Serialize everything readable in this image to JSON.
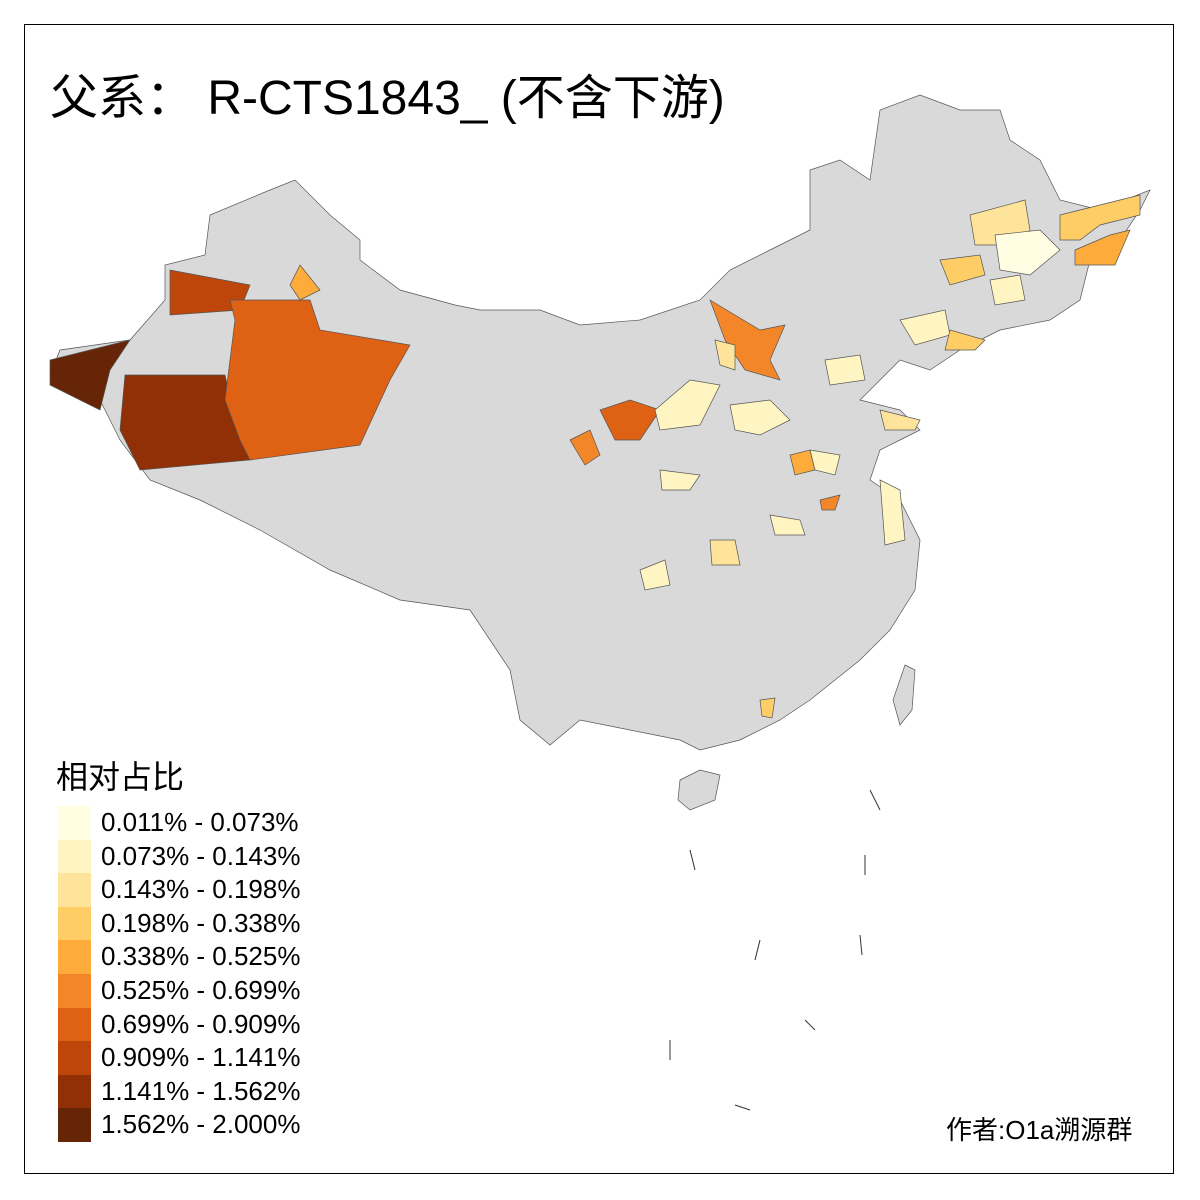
{
  "title": "父系： R-CTS1843_ (不含下游)",
  "legend": {
    "title": "相对占比",
    "items": [
      {
        "label": "0.011% - 0.073%",
        "color": "#FFFEE3"
      },
      {
        "label": "0.073% - 0.143%",
        "color": "#FFF5C2"
      },
      {
        "label": "0.143% - 0.198%",
        "color": "#FEE39A"
      },
      {
        "label": "0.198% - 0.338%",
        "color": "#FECD66"
      },
      {
        "label": "0.338% - 0.525%",
        "color": "#FDAB3B"
      },
      {
        "label": "0.525% - 0.699%",
        "color": "#F4862A"
      },
      {
        "label": "0.699% - 0.909%",
        "color": "#DF6113"
      },
      {
        "label": "0.909% - 1.141%",
        "color": "#BE460A"
      },
      {
        "label": "1.141% - 1.562%",
        "color": "#912F07"
      },
      {
        "label": "1.562% - 2.000%",
        "color": "#662506"
      }
    ]
  },
  "no_data_color": "#D9D9D9",
  "author": "作者:O1a溯源群"
}
